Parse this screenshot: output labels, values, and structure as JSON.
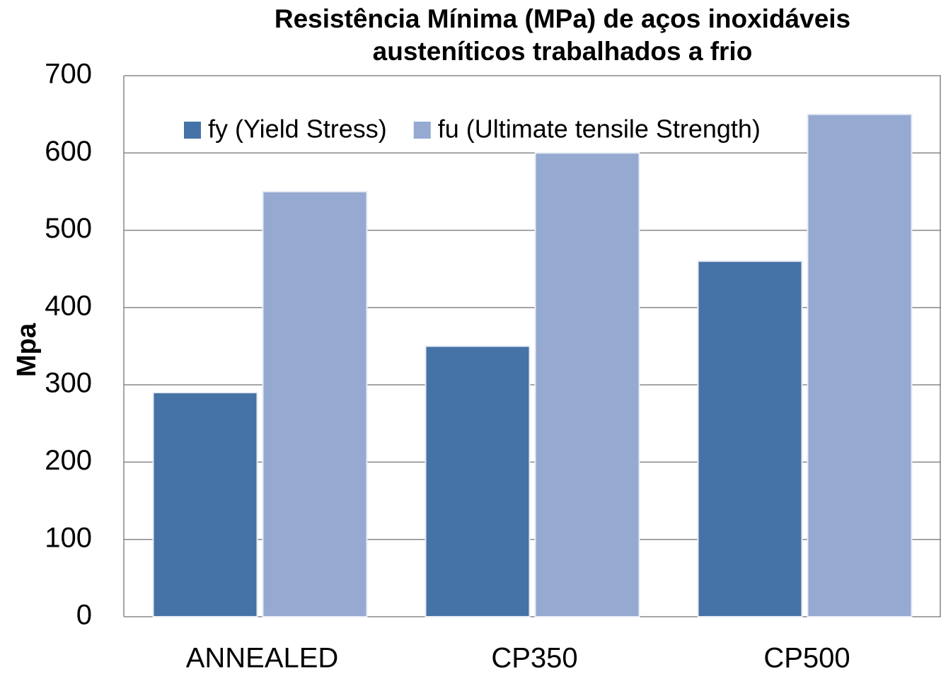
{
  "chart_data": {
    "type": "bar",
    "title": "Resistência Mínima (MPa) de aços inoxidáveis austeníticos trabalhados a frio",
    "y_label": "Mpa",
    "categories": [
      "ANNEALED",
      "CP350",
      "CP500"
    ],
    "series": [
      {
        "name": "fy (Yield Stress)",
        "color": "#4572a7",
        "values": [
          290,
          350,
          460
        ]
      },
      {
        "name": "fu (Ultimate tensile Strength)",
        "color": "#95a9d1",
        "values": [
          550,
          600,
          650
        ]
      }
    ],
    "ylim": [
      0,
      700
    ],
    "yticks": [
      0,
      100,
      200,
      300,
      400,
      500,
      600,
      700
    ],
    "grid": true,
    "legend": "top"
  }
}
